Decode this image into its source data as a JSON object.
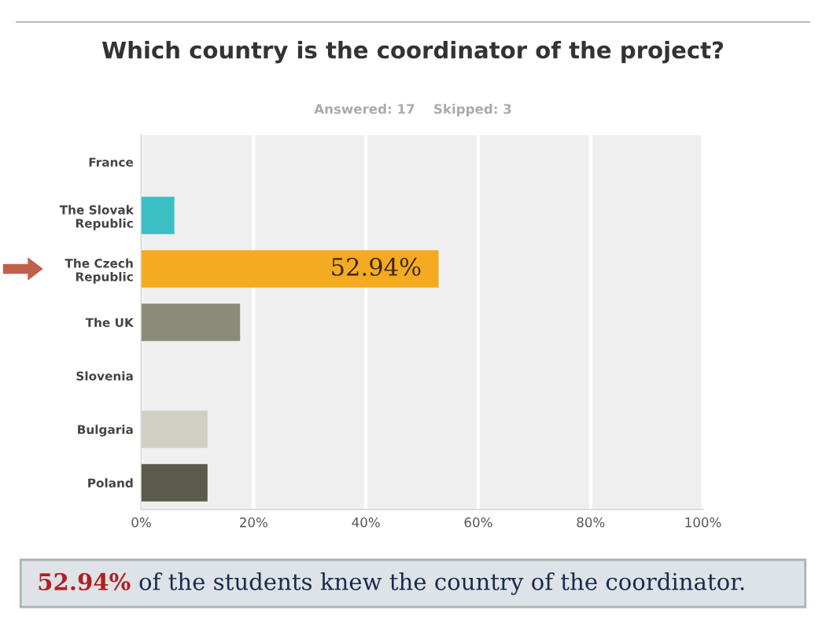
{
  "chart_data": {
    "type": "bar",
    "orientation": "horizontal",
    "title": "Which country is the coordinator of the project?",
    "subtitle": "Answered: 17    Skipped: 3",
    "categories": [
      "France",
      "The Slovak\nRepublic",
      "The Czech\nRepublic",
      "The UK",
      "Slovenia",
      "Bulgaria",
      "Poland"
    ],
    "values": [
      0,
      5.9,
      52.94,
      17.6,
      0,
      11.8,
      11.8
    ],
    "colors": [
      "#3bbfc4",
      "#3bbfc4",
      "#f5ab21",
      "#8b8b7a",
      "#8b8b7a",
      "#d0cfc4",
      "#5c5a4a"
    ],
    "value_labels": [
      null,
      null,
      "52.94%",
      null,
      null,
      null,
      null
    ],
    "xlim": [
      0,
      100
    ],
    "xticks": [
      {
        "value": 0,
        "label": "0%"
      },
      {
        "value": 20,
        "label": "20%"
      },
      {
        "value": 40,
        "label": "40%"
      },
      {
        "value": 60,
        "label": "60%"
      },
      {
        "value": 80,
        "label": "80%"
      },
      {
        "value": 100,
        "label": "100%"
      }
    ],
    "grid": "x",
    "annotations": [
      "52.94% of the students knew the country of the coordinator."
    ]
  }
}
